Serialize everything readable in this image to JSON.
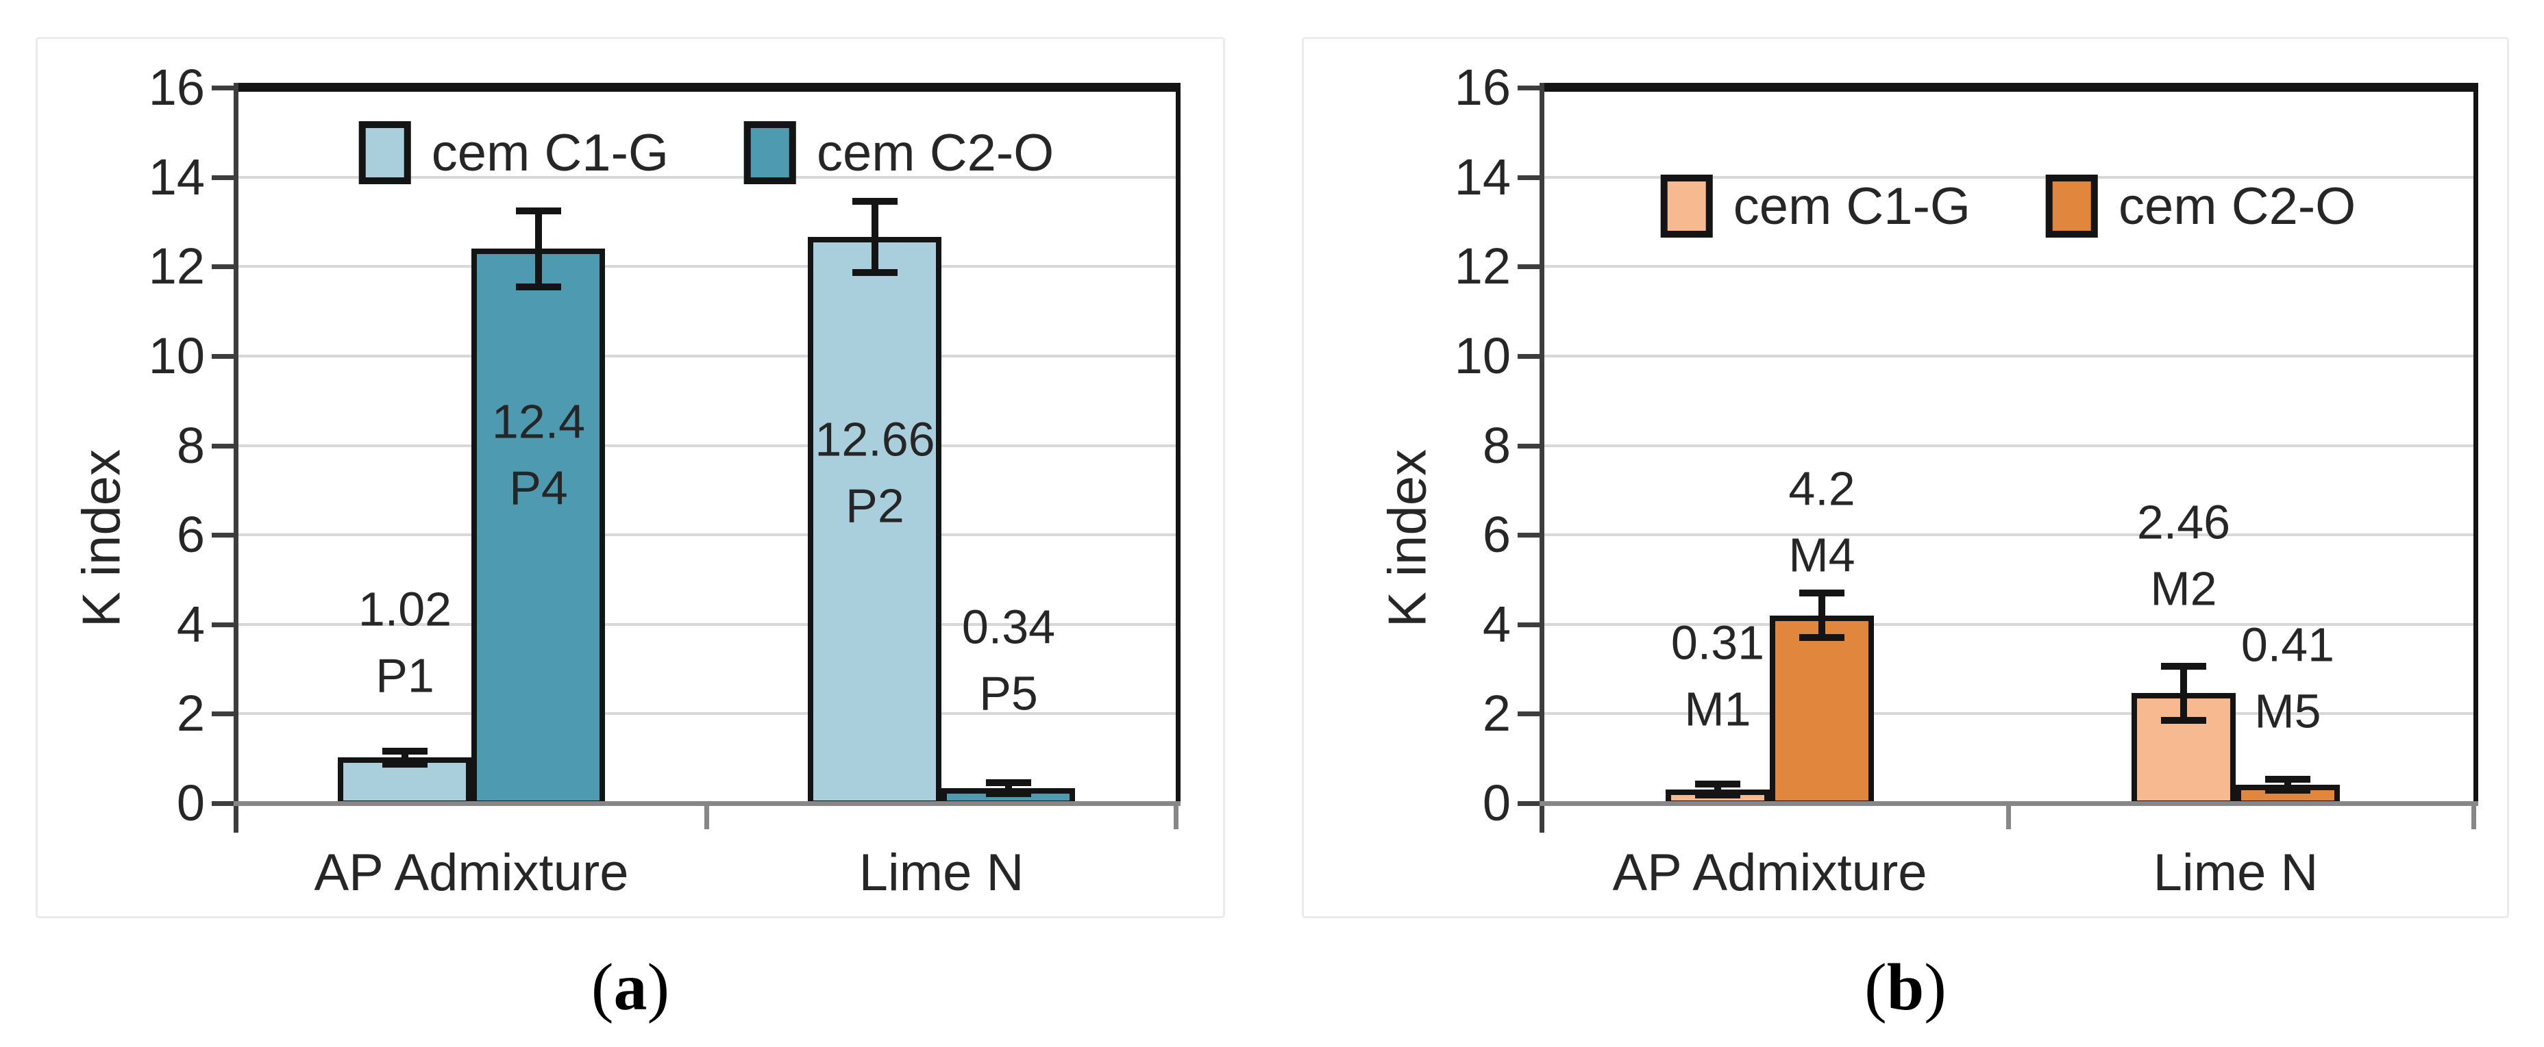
{
  "page": {
    "background": "#ffffff"
  },
  "captions": {
    "open": "(",
    "close": ")"
  },
  "chart_data": [
    {
      "type": "bar",
      "panel": "a",
      "caption_letter": "a",
      "title": "",
      "ylabel": "K index",
      "xlabel": "",
      "ylim": [
        0,
        16
      ],
      "ytick_step": 2,
      "yticks": [
        0,
        2,
        4,
        6,
        8,
        10,
        12,
        14,
        16
      ],
      "categories": [
        "AP Admixture",
        "Lime N"
      ],
      "grid": true,
      "gridline_color": "#d8d8d8",
      "legend_position": "inside-top-center",
      "series": [
        {
          "name": "cem C1-G",
          "color": "#a9cfdd",
          "values": [
            1.02,
            12.66
          ],
          "errors": [
            0.15,
            0.8
          ],
          "point_labels": [
            [
              "1.02",
              "P1"
            ],
            [
              "12.66",
              "P2"
            ]
          ],
          "label_center_y": [
            3.6,
            7.4
          ]
        },
        {
          "name": "cem C2-O",
          "color": "#4e9ab0",
          "values": [
            12.4,
            0.34
          ],
          "errors": [
            0.85,
            0.12
          ],
          "point_labels": [
            [
              "12.4",
              "P4"
            ],
            [
              "0.34",
              "P5"
            ]
          ],
          "label_center_y": [
            7.8,
            3.2
          ]
        }
      ]
    },
    {
      "type": "bar",
      "panel": "b",
      "caption_letter": "b",
      "title": "",
      "ylabel": "K index",
      "xlabel": "",
      "ylim": [
        0,
        16
      ],
      "ytick_step": 2,
      "yticks": [
        0,
        2,
        4,
        6,
        8,
        10,
        12,
        14,
        16
      ],
      "categories": [
        "AP Admixture",
        "Lime N"
      ],
      "grid": true,
      "gridline_color": "#d8d8d8",
      "legend_position": "inside-top-center",
      "series": [
        {
          "name": "cem C1-G",
          "color": "#f7ba90",
          "values": [
            0.31,
            2.46
          ],
          "errors": [
            0.12,
            0.6
          ],
          "point_labels": [
            [
              "0.31",
              "M1"
            ],
            [
              "2.46",
              "M2"
            ]
          ],
          "label_center_y": [
            2.85,
            5.55
          ]
        },
        {
          "name": "cem C2-O",
          "color": "#e1873d",
          "values": [
            4.2,
            0.41
          ],
          "errors": [
            0.5,
            0.12
          ],
          "point_labels": [
            [
              "4.2",
              "M4"
            ],
            [
              "0.41",
              "M5"
            ]
          ],
          "label_center_y": [
            6.3,
            2.8
          ]
        }
      ]
    }
  ]
}
